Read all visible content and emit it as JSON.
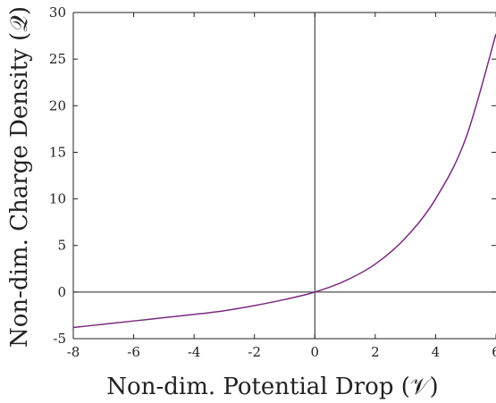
{
  "chart_data": {
    "type": "line",
    "xlabel": "Non-dim. Potential Drop (𝒱)",
    "ylabel": "Non-dim. Charge Density (𝒬)",
    "xlim": [
      -8,
      6
    ],
    "ylim": [
      -5,
      30
    ],
    "xticks": [
      "-8",
      "-6",
      "-4",
      "-2",
      "0",
      "2",
      "4",
      "6"
    ],
    "yticks": [
      "-5",
      "0",
      "5",
      "10",
      "15",
      "20",
      "25",
      "30"
    ],
    "grid": false,
    "zero_lines": true,
    "series": [
      {
        "color": "#7b2a7f",
        "x": [
          -8,
          -7,
          -6,
          -5,
          -4,
          -3,
          -2,
          -1,
          0,
          1,
          2,
          3,
          4,
          5,
          6
        ],
        "y": [
          -3.8,
          -3.45,
          -3.1,
          -2.75,
          -2.4,
          -2.0,
          -1.45,
          -0.8,
          0.0,
          1.2,
          3.0,
          5.8,
          10.0,
          16.5,
          27.7
        ]
      }
    ]
  }
}
